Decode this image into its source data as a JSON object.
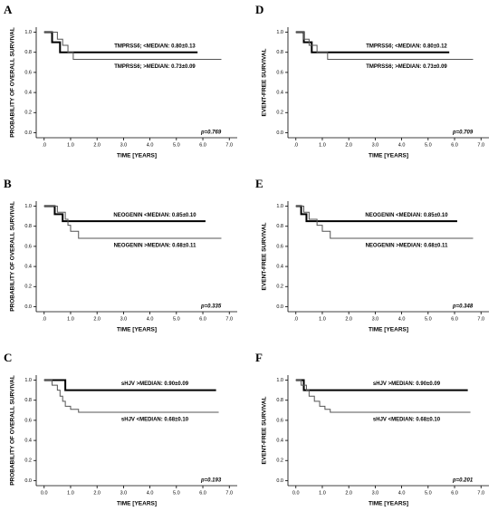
{
  "chart_data": [
    {
      "type": "line",
      "panel": "A",
      "ylabel": "PROBABILITY OF OVERALL SURVIVAL",
      "xlabel": "TIME [YEARS]",
      "annotation": "p=0.769",
      "xlim": [
        -0.3,
        7.3
      ],
      "ylim": [
        -0.05,
        1.05
      ],
      "xticks": [
        {
          "value": 0,
          "label": ".0"
        },
        {
          "value": 1,
          "label": "1.0"
        },
        {
          "value": 2,
          "label": "2.0"
        },
        {
          "value": 3,
          "label": "3.0"
        },
        {
          "value": 4,
          "label": "4.0"
        },
        {
          "value": 5,
          "label": "5.0"
        },
        {
          "value": 6,
          "label": "6.0"
        },
        {
          "value": 7,
          "label": "7.0"
        }
      ],
      "yticks": [
        {
          "value": 0,
          "label": "0.0"
        },
        0.2,
        0.4,
        0.6,
        0.8,
        {
          "value": 1,
          "label": "1.0"
        }
      ],
      "series": [
        {
          "name": "TMPRSS6; <MEDIAN: 0.80±0.13",
          "color": "#000000",
          "line_width": 2,
          "x": [
            0,
            0.3,
            0.3,
            0.6,
            0.6,
            5.8
          ],
          "values": [
            1,
            1,
            0.9,
            0.9,
            0.8,
            0.8
          ]
        },
        {
          "name": "TMPRSS6; >MEDIAN: 0.73±0.09",
          "color": "#555555",
          "line_width": 1,
          "x": [
            0,
            0.5,
            0.5,
            0.7,
            0.7,
            0.9,
            0.9,
            1.1,
            1.1,
            6.7
          ],
          "values": [
            1,
            1,
            0.93,
            0.93,
            0.87,
            0.87,
            0.8,
            0.8,
            0.73,
            0.73
          ]
        }
      ]
    },
    {
      "type": "line",
      "panel": "B",
      "ylabel": "PROBABILITY OF OVERALL SURVIVAL",
      "xlabel": "TIME [YEARS]",
      "annotation": "p=0.335",
      "xlim": [
        -0.3,
        7.3
      ],
      "ylim": [
        -0.05,
        1.05
      ],
      "xticks": [
        {
          "value": 0,
          "label": ".0"
        },
        {
          "value": 1,
          "label": "1.0"
        },
        {
          "value": 2,
          "label": "2.0"
        },
        {
          "value": 3,
          "label": "3.0"
        },
        {
          "value": 4,
          "label": "4.0"
        },
        {
          "value": 5,
          "label": "5.0"
        },
        {
          "value": 6,
          "label": "6.0"
        },
        {
          "value": 7,
          "label": "7.0"
        }
      ],
      "yticks": [
        {
          "value": 0,
          "label": "0.0"
        },
        0.2,
        0.4,
        0.6,
        0.8,
        {
          "value": 1,
          "label": "1.0"
        }
      ],
      "series": [
        {
          "name": "NEOGENIN <MEDIAN: 0.85±0.10",
          "color": "#000000",
          "line_width": 2,
          "x": [
            0,
            0.4,
            0.4,
            0.7,
            0.7,
            6.1
          ],
          "values": [
            1,
            1,
            0.92,
            0.92,
            0.85,
            0.85
          ]
        },
        {
          "name": "NEOGENIN >MEDIAN: 0.68±0.11",
          "color": "#555555",
          "line_width": 1,
          "x": [
            0,
            0.5,
            0.5,
            0.8,
            0.8,
            0.9,
            0.9,
            1.0,
            1.0,
            1.3,
            1.3,
            6.7
          ],
          "values": [
            1,
            1,
            0.94,
            0.94,
            0.87,
            0.87,
            0.81,
            0.81,
            0.75,
            0.75,
            0.68,
            0.68
          ]
        }
      ]
    },
    {
      "type": "line",
      "panel": "C",
      "ylabel": "PROBABILITY OF OVERALL SURVIVAL",
      "xlabel": "TIME [YEARS]",
      "annotation": "p=0.193",
      "xlim": [
        -0.3,
        7.3
      ],
      "ylim": [
        -0.05,
        1.05
      ],
      "xticks": [
        {
          "value": 0,
          "label": "0.0"
        },
        {
          "value": 1,
          "label": "1.0"
        },
        {
          "value": 2,
          "label": "2.0"
        },
        {
          "value": 3,
          "label": "3.0"
        },
        {
          "value": 4,
          "label": "4.0"
        },
        {
          "value": 5,
          "label": "5.0"
        },
        {
          "value": 6,
          "label": "6.0"
        },
        {
          "value": 7,
          "label": "7.0"
        }
      ],
      "yticks": [
        {
          "value": 0,
          "label": "0.0"
        },
        0.2,
        0.4,
        0.6,
        0.8,
        {
          "value": 1,
          "label": "1.0"
        }
      ],
      "series": [
        {
          "name": "sHJV >MEDIAN: 0.90±0.09",
          "color": "#000000",
          "line_width": 2,
          "x": [
            0,
            0.8,
            0.8,
            6.5
          ],
          "values": [
            1,
            1,
            0.9,
            0.9
          ]
        },
        {
          "name": "sHJV <MEDIAN: 0.68±0.10",
          "color": "#555555",
          "line_width": 1,
          "x": [
            0,
            0.3,
            0.3,
            0.5,
            0.5,
            0.6,
            0.6,
            0.7,
            0.7,
            0.8,
            0.8,
            1.0,
            1.0,
            1.3,
            1.3,
            6.6
          ],
          "values": [
            1,
            1,
            0.95,
            0.95,
            0.9,
            0.9,
            0.84,
            0.84,
            0.79,
            0.79,
            0.74,
            0.74,
            0.71,
            0.71,
            0.68,
            0.68
          ]
        }
      ]
    },
    {
      "type": "line",
      "panel": "D",
      "ylabel": "EVENT-FREE SURVIVAL",
      "xlabel": "TIME [YEARS]",
      "annotation": "p=0.709",
      "xlim": [
        -0.3,
        7.3
      ],
      "ylim": [
        -0.05,
        1.05
      ],
      "xticks": [
        {
          "value": 0,
          "label": ".0"
        },
        {
          "value": 1,
          "label": "1.0"
        },
        {
          "value": 2,
          "label": "2.0"
        },
        {
          "value": 3,
          "label": "3.0"
        },
        {
          "value": 4,
          "label": "4.0"
        },
        {
          "value": 5,
          "label": "5.0"
        },
        {
          "value": 6,
          "label": "6.0"
        },
        {
          "value": 7,
          "label": "7.0"
        }
      ],
      "yticks": [
        {
          "value": 0,
          "label": "0.0"
        },
        0.2,
        0.4,
        0.6,
        0.8,
        {
          "value": 1,
          "label": "1.0"
        }
      ],
      "series": [
        {
          "name": "TMPRSS6; <MEDIAN: 0.80±0.12",
          "color": "#000000",
          "line_width": 2,
          "x": [
            0,
            0.3,
            0.3,
            0.6,
            0.6,
            5.8
          ],
          "values": [
            1,
            1,
            0.9,
            0.9,
            0.8,
            0.8
          ]
        },
        {
          "name": "TMPRSS6; >MEDIAN: 0.73±0.09",
          "color": "#555555",
          "line_width": 1,
          "x": [
            0,
            0.3,
            0.3,
            0.5,
            0.5,
            0.8,
            0.8,
            1.2,
            1.2,
            6.7
          ],
          "values": [
            1,
            1,
            0.93,
            0.93,
            0.87,
            0.87,
            0.8,
            0.8,
            0.73,
            0.73
          ]
        }
      ]
    },
    {
      "type": "line",
      "panel": "E",
      "ylabel": "EVENT-FREE SURVIVAL",
      "xlabel": "TIME [YEARS]",
      "annotation": "p=0.348",
      "xlim": [
        -0.3,
        7.3
      ],
      "ylim": [
        -0.05,
        1.05
      ],
      "xticks": [
        {
          "value": 0,
          "label": ".0"
        },
        {
          "value": 1,
          "label": "1.0"
        },
        {
          "value": 2,
          "label": "2.0"
        },
        {
          "value": 3,
          "label": "3.0"
        },
        {
          "value": 4,
          "label": "4.0"
        },
        {
          "value": 5,
          "label": "5.0"
        },
        {
          "value": 6,
          "label": "6.0"
        },
        {
          "value": 7,
          "label": "7.0"
        }
      ],
      "yticks": [
        {
          "value": 0,
          "label": "0.0"
        },
        0.2,
        0.4,
        0.6,
        0.8,
        {
          "value": 1,
          "label": "1.0"
        }
      ],
      "series": [
        {
          "name": "NEOGENIN <MEDIAN: 0.85±0.10",
          "color": "#000000",
          "line_width": 2,
          "x": [
            0,
            0.2,
            0.2,
            0.4,
            0.4,
            6.1
          ],
          "values": [
            1,
            1,
            0.92,
            0.92,
            0.85,
            0.85
          ]
        },
        {
          "name": "NEOGENIN >MEDIAN: 0.68±0.11",
          "color": "#555555",
          "line_width": 1,
          "x": [
            0,
            0.3,
            0.3,
            0.5,
            0.5,
            0.8,
            0.8,
            1.0,
            1.0,
            1.3,
            1.3,
            6.7
          ],
          "values": [
            1,
            1,
            0.94,
            0.94,
            0.87,
            0.87,
            0.81,
            0.81,
            0.75,
            0.75,
            0.68,
            0.68
          ]
        }
      ]
    },
    {
      "type": "line",
      "panel": "F",
      "ylabel": "EVENT-FREE SURVIVAL",
      "xlabel": "TIME [YEARS]",
      "annotation": "p=0.201",
      "xlim": [
        -0.3,
        7.3
      ],
      "ylim": [
        -0.05,
        1.05
      ],
      "xticks": [
        {
          "value": 0,
          "label": "0.0"
        },
        {
          "value": 1,
          "label": "1.0"
        },
        {
          "value": 2,
          "label": "2.0"
        },
        {
          "value": 3,
          "label": "3.0"
        },
        {
          "value": 4,
          "label": "4.0"
        },
        {
          "value": 5,
          "label": "5.0"
        },
        {
          "value": 6,
          "label": "6.0"
        },
        {
          "value": 7,
          "label": "7.0"
        }
      ],
      "yticks": [
        {
          "value": 0,
          "label": "0.0"
        },
        0.2,
        0.4,
        0.6,
        0.8,
        {
          "value": 1,
          "label": "1.0"
        }
      ],
      "series": [
        {
          "name": "sHJV >MEDIAN: 0.90±0.09",
          "color": "#000000",
          "line_width": 2,
          "x": [
            0,
            0.3,
            0.3,
            6.5
          ],
          "values": [
            1,
            1,
            0.9,
            0.9
          ]
        },
        {
          "name": "sHJV <MEDIAN: 0.68±0.10",
          "color": "#555555",
          "line_width": 1,
          "x": [
            0,
            0.2,
            0.2,
            0.4,
            0.4,
            0.5,
            0.5,
            0.7,
            0.7,
            0.9,
            0.9,
            1.1,
            1.1,
            1.3,
            1.3,
            6.6
          ],
          "values": [
            1,
            1,
            0.95,
            0.95,
            0.9,
            0.9,
            0.84,
            0.84,
            0.79,
            0.79,
            0.74,
            0.74,
            0.71,
            0.71,
            0.68,
            0.68
          ]
        }
      ]
    }
  ]
}
